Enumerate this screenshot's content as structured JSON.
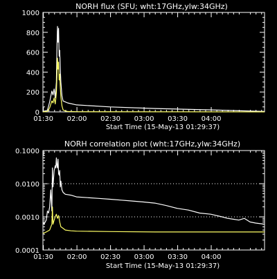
{
  "theme": {
    "background": "#000000",
    "foreground": "#ffffff",
    "series_17ghz": "#ffffff",
    "series_34ghz": "#ffff66"
  },
  "chart_data": [
    {
      "type": "line",
      "title": "NORH flux (SFU; wht:17GHz,ylw:34GHz)",
      "xlabel": "Start Time (15-May-13 01:29:37)",
      "ylabel": "",
      "x_unit": "minutes after 01:29:37",
      "xlim": [
        0,
        198
      ],
      "ylim": [
        0,
        1000
      ],
      "x_ticks": [
        "01:30",
        "02:00",
        "02:30",
        "03:00",
        "03:30",
        "04:00"
      ],
      "y_ticks": [
        "0",
        "200",
        "400",
        "600",
        "800",
        "1000"
      ],
      "grid": false,
      "series": [
        {
          "color": "#ffffff",
          "x": [
            0,
            4,
            6,
            8,
            9,
            10,
            11,
            12,
            12.5,
            13,
            13.5,
            14,
            14.5,
            15,
            15.5,
            16,
            17,
            18,
            20,
            22,
            30,
            60,
            100,
            150,
            198
          ],
          "y": [
            5,
            15,
            100,
            210,
            170,
            230,
            140,
            300,
            620,
            860,
            700,
            840,
            560,
            620,
            430,
            300,
            160,
            110,
            100,
            90,
            70,
            50,
            34,
            20,
            4
          ]
        },
        {
          "color": "#ffff66",
          "x": [
            0,
            4,
            6,
            8,
            9,
            10,
            11,
            12,
            12.5,
            13,
            13.5,
            14,
            14.5,
            15,
            15.5,
            16,
            17,
            18,
            20,
            22,
            30,
            198
          ],
          "y": [
            0,
            5,
            40,
            110,
            90,
            140,
            80,
            190,
            350,
            540,
            430,
            500,
            320,
            380,
            240,
            150,
            60,
            20,
            8,
            4,
            2,
            0
          ]
        }
      ]
    },
    {
      "type": "line",
      "title": "NORH correlation plot (wht:17GHz,ylw:34GHz)",
      "xlabel": "Start Time (15-May-13 01:29:37)",
      "ylabel": "",
      "x_unit": "minutes after 01:29:37",
      "xlim": [
        0,
        198
      ],
      "ylim": [
        0.0001,
        0.1
      ],
      "y_scale": "log",
      "x_ticks": [
        "01:30",
        "02:00",
        "02:30",
        "03:00",
        "03:30",
        "04:00"
      ],
      "y_ticks": [
        "0.0001",
        "0.0010",
        "0.0100",
        "0.1000"
      ],
      "reference_lines": [
        0.001,
        0.01
      ],
      "series": [
        {
          "color": "#ffffff",
          "x": [
            0,
            1,
            3,
            4,
            5,
            6,
            7,
            8,
            8.5,
            9,
            10,
            11,
            11.5,
            12,
            12.5,
            13,
            13.5,
            14,
            14.5,
            15,
            15.5,
            16,
            17,
            18,
            20,
            25,
            30,
            40,
            50,
            60,
            70,
            80,
            90,
            100,
            110,
            120,
            130,
            140,
            150,
            160,
            165,
            170,
            175,
            180,
            185,
            190,
            198
          ],
          "y": [
            0.0007,
            0.0006,
            0.0008,
            0.0015,
            0.0013,
            0.002,
            0.0065,
            0.0015,
            0.03,
            0.008,
            0.025,
            0.035,
            0.03,
            0.06,
            0.035,
            0.03,
            0.055,
            0.02,
            0.018,
            0.025,
            0.008,
            0.012,
            0.0065,
            0.0055,
            0.0048,
            0.0045,
            0.004,
            0.0038,
            0.0036,
            0.0034,
            0.0032,
            0.003,
            0.0028,
            0.0026,
            0.0022,
            0.0018,
            0.0016,
            0.0013,
            0.0012,
            0.001,
            0.0009,
            0.00085,
            0.0008,
            0.0009,
            0.0007,
            0.00065,
            0.0006
          ]
        },
        {
          "color": "#ffff66",
          "x": [
            0,
            3,
            6,
            8,
            8.5,
            9,
            10,
            11,
            12,
            13,
            14,
            15,
            16,
            18,
            20,
            25,
            30,
            60,
            100,
            150,
            198
          ],
          "y": [
            0.00032,
            0.00035,
            0.0004,
            0.0006,
            0.002,
            0.0006,
            0.0008,
            0.001,
            0.0012,
            0.0009,
            0.0011,
            0.0007,
            0.0005,
            0.00045,
            0.0004,
            0.00038,
            0.00037,
            0.00036,
            0.00035,
            0.00035,
            0.00035
          ]
        }
      ]
    }
  ]
}
